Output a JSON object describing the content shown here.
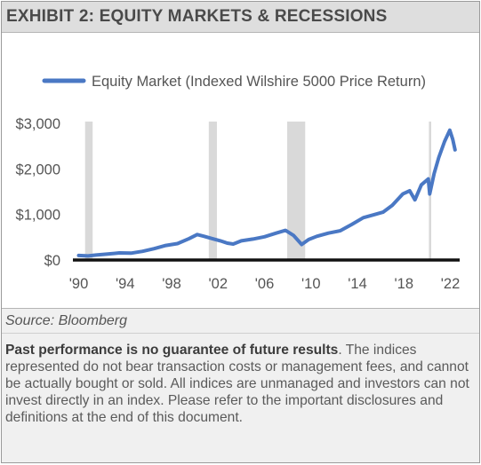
{
  "exhibit": {
    "title": "EXHIBIT 2: EQUITY MARKETS & RECESSIONS"
  },
  "chart_data": {
    "type": "line",
    "legend": {
      "label": "Equity Market (Indexed Wilshire 5000 Price Return)",
      "placement": "top"
    },
    "colors": {
      "series": "#4a78c4",
      "recession": "#d9d9d9",
      "axis": "#111111",
      "text": "#555555"
    },
    "series": [
      {
        "name": "Equity Market (Indexed Wilshire 5000 Price Return)",
        "x": [
          1990.0,
          1990.8,
          1991.5,
          1992.5,
          1993.5,
          1994.5,
          1995.5,
          1996.5,
          1997.5,
          1998.5,
          1999.5,
          2000.2,
          2000.8,
          2001.5,
          2002.2,
          2002.8,
          2003.3,
          2004.0,
          2005.0,
          2006.0,
          2007.0,
          2007.8,
          2008.5,
          2009.2,
          2009.8,
          2010.5,
          2011.5,
          2012.5,
          2013.5,
          2014.5,
          2015.5,
          2016.2,
          2017.0,
          2017.9,
          2018.5,
          2018.95,
          2019.5,
          2020.1,
          2020.22,
          2020.6,
          2021.0,
          2021.5,
          2021.95,
          2022.2,
          2022.4
        ],
        "values": [
          100,
          90,
          110,
          130,
          155,
          150,
          190,
          250,
          320,
          360,
          470,
          560,
          520,
          470,
          420,
          370,
          350,
          420,
          460,
          510,
          590,
          650,
          540,
          340,
          450,
          520,
          590,
          640,
          780,
          930,
          1000,
          1050,
          1200,
          1450,
          1520,
          1320,
          1650,
          1780,
          1450,
          1900,
          2250,
          2600,
          2850,
          2650,
          2420
        ]
      }
    ],
    "recessions": [
      [
        1990.55,
        1991.2
      ],
      [
        2001.2,
        2001.9
      ],
      [
        2007.95,
        2009.5
      ],
      [
        2020.15,
        2020.35
      ]
    ],
    "xlim": [
      1989.5,
      2022.8
    ],
    "ylim": [
      0,
      3000
    ],
    "y_ticks": [
      0,
      1000,
      2000,
      3000
    ],
    "y_tick_labels": [
      "$0",
      "$1,000",
      "$2,000",
      "$3,000"
    ],
    "x_ticks": [
      1990,
      1994,
      1998,
      2002,
      2006,
      2010,
      2014,
      2018,
      2022
    ],
    "x_tick_labels": [
      "'90",
      "'94",
      "'98",
      "'02",
      "'06",
      "'10",
      "'14",
      "'18",
      "'22"
    ],
    "grid": false
  },
  "footer": {
    "source": "Source: Bloomberg",
    "disclaimer_bold": "Past performance is no guarantee of future results",
    "disclaimer_text": ". The indices represented do not bear transaction costs or management fees, and cannot be actually bought or sold. All indices are unmanaged and investors can not invest directly in an index. Please refer to the important disclosures and definitions at the end of this document."
  }
}
